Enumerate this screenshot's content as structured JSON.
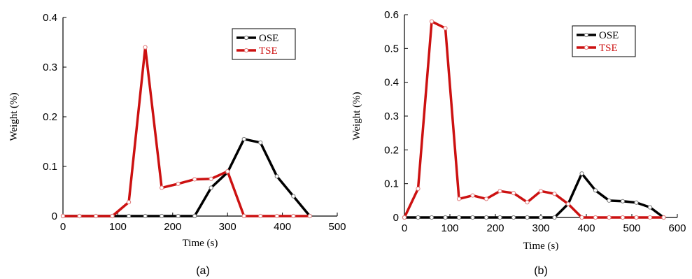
{
  "chart_data": [
    {
      "type": "line",
      "caption": "(a)",
      "xlabel": "Time (s)",
      "ylabel": "Weight (%)",
      "xlim": [
        0,
        500
      ],
      "ylim": [
        0,
        0.4
      ],
      "xticks": [
        0,
        100,
        200,
        300,
        400,
        500
      ],
      "yticks": [
        0,
        0.1,
        0.2,
        0.3,
        0.4
      ],
      "ytick_labels": [
        "0",
        "0.1",
        "0.2",
        "0.3",
        "0.4"
      ],
      "grid": false,
      "legend_position": "top-right",
      "series": [
        {
          "name": "OSE",
          "color": "#000000",
          "x": [
            0,
            30,
            60,
            90,
            120,
            150,
            180,
            210,
            240,
            270,
            300,
            330,
            360,
            390,
            420,
            450
          ],
          "y": [
            0,
            0,
            0,
            0,
            0,
            0,
            0,
            0,
            0,
            0.057,
            0.088,
            0.155,
            0.148,
            0.08,
            0.04,
            0
          ]
        },
        {
          "name": "TSE",
          "color": "#cc1111",
          "x": [
            0,
            30,
            60,
            90,
            120,
            150,
            180,
            210,
            240,
            270,
            300,
            330,
            360,
            390,
            420,
            450
          ],
          "y": [
            0,
            0,
            0,
            0,
            0.028,
            0.34,
            0.057,
            0.065,
            0.074,
            0.075,
            0.09,
            0,
            0,
            0,
            0,
            0
          ]
        }
      ]
    },
    {
      "type": "line",
      "caption": "(b)",
      "xlabel": "Time (s)",
      "ylabel": "Weight (%)",
      "xlim": [
        0,
        600
      ],
      "ylim": [
        0,
        0.6
      ],
      "xticks": [
        0,
        100,
        200,
        300,
        400,
        500,
        600
      ],
      "yticks": [
        0,
        0.1,
        0.2,
        0.3,
        0.4,
        0.5,
        0.6
      ],
      "ytick_labels": [
        "0",
        "0.1",
        "0.2",
        "0.3",
        "0.4",
        "0.5",
        "0.6"
      ],
      "grid": false,
      "legend_position": "top-right",
      "series": [
        {
          "name": "OSE",
          "color": "#000000",
          "x": [
            0,
            30,
            60,
            90,
            120,
            150,
            180,
            210,
            240,
            270,
            300,
            330,
            360,
            390,
            420,
            450,
            480,
            510,
            540,
            570
          ],
          "y": [
            0,
            0,
            0,
            0,
            0,
            0,
            0,
            0,
            0,
            0,
            0,
            0,
            0.04,
            0.13,
            0.08,
            0.05,
            0.048,
            0.044,
            0.03,
            0
          ]
        },
        {
          "name": "TSE",
          "color": "#cc1111",
          "x": [
            0,
            30,
            60,
            90,
            120,
            150,
            180,
            210,
            240,
            270,
            300,
            330,
            360,
            390,
            420,
            450,
            480,
            510,
            540,
            570
          ],
          "y": [
            0,
            0.085,
            0.58,
            0.56,
            0.055,
            0.065,
            0.055,
            0.078,
            0.072,
            0.045,
            0.078,
            0.07,
            0.04,
            0,
            0,
            0,
            0,
            0,
            0,
            0
          ]
        }
      ]
    }
  ]
}
